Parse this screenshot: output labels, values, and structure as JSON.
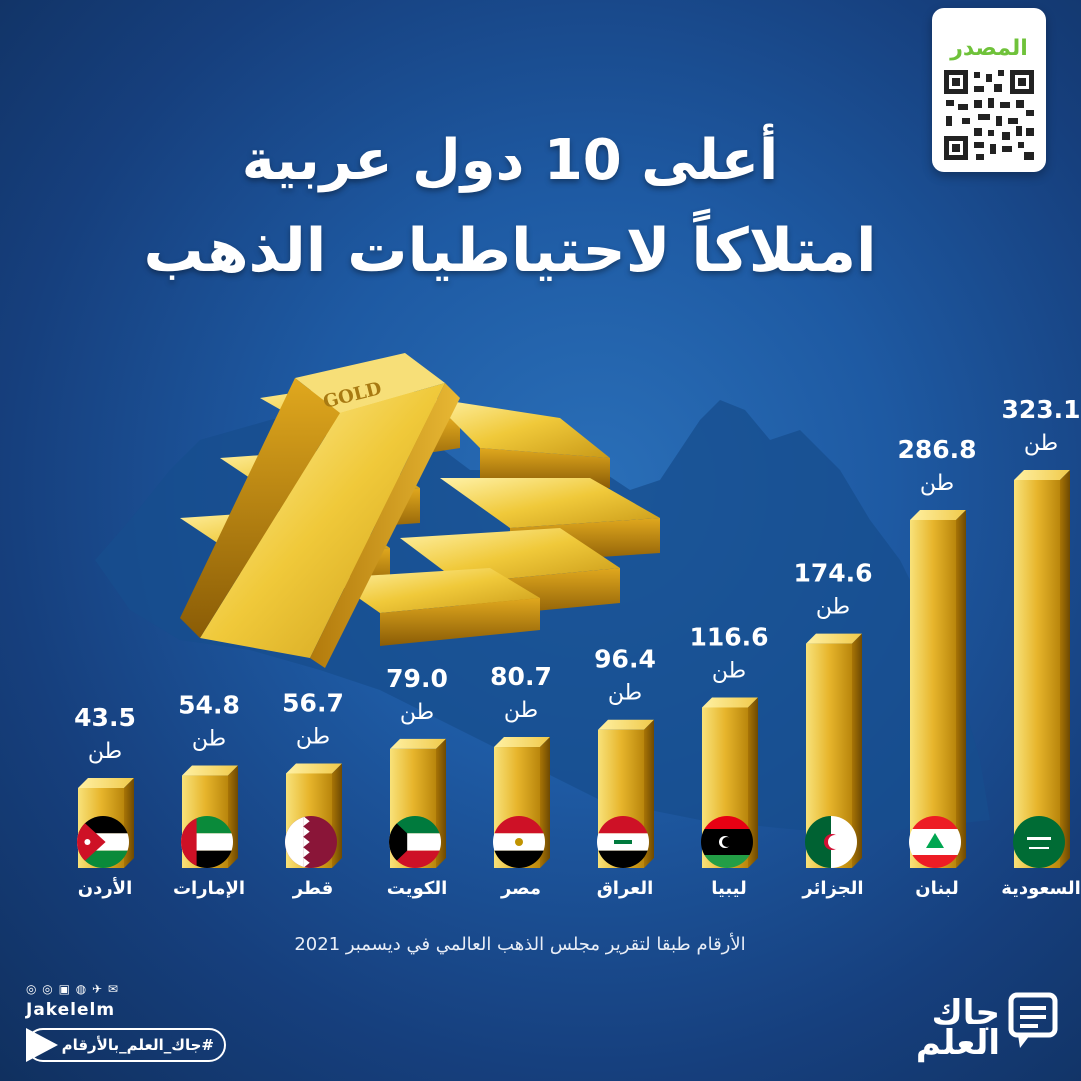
{
  "header": {
    "title_line1": "أعلى 10 دول عربية",
    "title_line2": "امتلاكاً لاحتياطيات الذهب"
  },
  "source": {
    "label": "المصدر",
    "qr_icon": "qr-code-icon"
  },
  "colors": {
    "background": "#1e5aa3",
    "gold_light": "#f6e27a",
    "gold_dark": "#b8860b",
    "accent_green": "#6fc23a"
  },
  "chart_data": {
    "type": "bar",
    "unit": "طن",
    "categories": [
      "الأردن",
      "الإمارات",
      "قطر",
      "الكويت",
      "مصر",
      "العراق",
      "ليبيا",
      "الجزائر",
      "لبنان",
      "السعودية"
    ],
    "values": [
      43.5,
      54.8,
      56.7,
      79.0,
      80.7,
      96.4,
      116.6,
      174.6,
      286.8,
      323.1
    ],
    "value_labels": [
      "43.5",
      "54.8",
      "56.7",
      "79.0",
      "80.7",
      "96.4",
      "116.6",
      "174.6",
      "286.8",
      "323.1"
    ],
    "flags": [
      "jordan-flag-icon",
      "uae-flag-icon",
      "qatar-flag-icon",
      "kuwait-flag-icon",
      "egypt-flag-icon",
      "iraq-flag-icon",
      "libya-flag-icon",
      "algeria-flag-icon",
      "lebanon-flag-icon",
      "saudi-flag-icon"
    ],
    "ylim": [
      0,
      323.1
    ],
    "grid": false,
    "legend": "none"
  },
  "footer": {
    "note": "الأرقام طبقا لتقرير مجلس الذهب العالمي في ديسمبر 2021",
    "handle": "Jakelelm",
    "hashtag": "#جاك_العلم_بالأرقام",
    "brand_line1": "جاك",
    "brand_line2": "العلم",
    "social_icons": [
      "snapchat-icon",
      "instagram-icon",
      "linkedin-icon",
      "facebook-icon",
      "twitter-icon",
      "telegram-icon"
    ]
  }
}
